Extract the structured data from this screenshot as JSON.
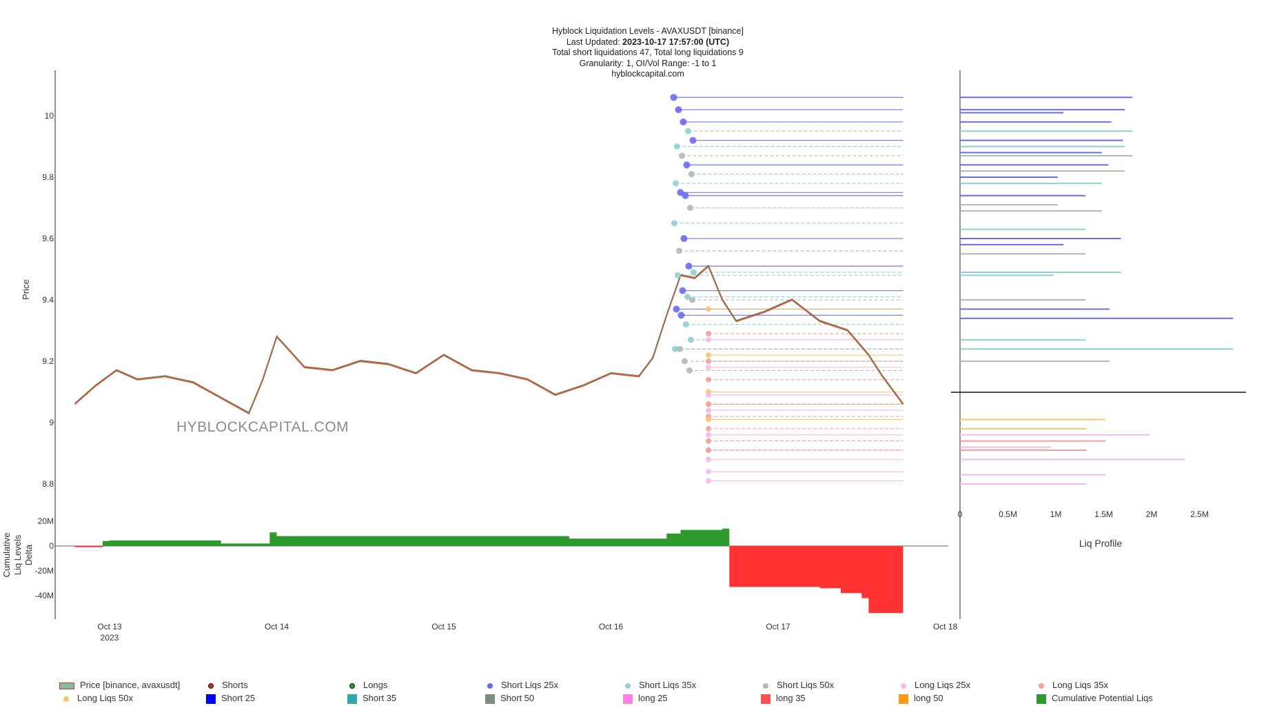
{
  "header": {
    "title": "Hyblock Liquidation Levels - AVAXUSDT [binance]",
    "updated_prefix": "Last Updated: ",
    "updated_value": "2023-10-17 17:57:00 (UTC)",
    "totals": "Total short liquidations 47, Total long liquidations 9",
    "granularity": "Granularity: 1, OI/Vol Range: -1 to 1",
    "site": "hyblockcapital.com"
  },
  "watermark": "HYBLOCKCAPITAL.COM",
  "colors": {
    "short25": "#6a6af0",
    "short35": "#8fd0d0",
    "short50": "#b0bab0",
    "long25": "#f9b8ec",
    "long35": "#f4a09c",
    "long50": "#f6c56e",
    "cumulative_pos": "#2e9a2e",
    "cumulative_neg": "#ff3333",
    "candle_up": "#3f8f5f",
    "candle_down": "#d8573a"
  },
  "chart_data": [
    {
      "type": "line",
      "title": "Hyblock Liquidation Levels - AVAXUSDT [binance]",
      "ylabel": "Price",
      "ylim": [
        8.73,
        10.15
      ],
      "x_ticks": [
        "Oct 13",
        "Oct 14",
        "Oct 15",
        "Oct 16",
        "Oct 17",
        "Oct 18"
      ],
      "x_tick_sub": "2023",
      "y_ticks": [
        "8.8",
        "9",
        "9.2",
        "9.4",
        "9.6",
        "9.8",
        "10"
      ],
      "price_series": {
        "name": "Price [binance, avaxusdt]",
        "x": [
          "2023-10-12 19:00",
          "2023-10-12 22:00",
          "2023-10-13 01:00",
          "2023-10-13 04:00",
          "2023-10-13 08:00",
          "2023-10-13 12:00",
          "2023-10-13 16:00",
          "2023-10-13 20:00",
          "2023-10-13 22:00",
          "2023-10-14 00:00",
          "2023-10-14 04:00",
          "2023-10-14 08:00",
          "2023-10-14 12:00",
          "2023-10-14 16:00",
          "2023-10-14 20:00",
          "2023-10-15 00:00",
          "2023-10-15 04:00",
          "2023-10-15 08:00",
          "2023-10-15 12:00",
          "2023-10-15 16:00",
          "2023-10-15 20:00",
          "2023-10-16 00:00",
          "2023-10-16 04:00",
          "2023-10-16 06:00",
          "2023-10-16 08:00",
          "2023-10-16 10:00",
          "2023-10-16 12:00",
          "2023-10-16 14:00",
          "2023-10-16 16:00",
          "2023-10-16 18:00",
          "2023-10-16 22:00",
          "2023-10-17 02:00",
          "2023-10-17 06:00",
          "2023-10-17 10:00",
          "2023-10-17 13:00",
          "2023-10-17 15:00",
          "2023-10-17 17:57"
        ],
        "y": [
          9.06,
          9.12,
          9.17,
          9.14,
          9.15,
          9.13,
          9.08,
          9.03,
          9.14,
          9.28,
          9.18,
          9.17,
          9.2,
          9.19,
          9.16,
          9.22,
          9.17,
          9.16,
          9.14,
          9.09,
          9.12,
          9.16,
          9.15,
          9.21,
          9.35,
          9.48,
          9.47,
          9.51,
          9.4,
          9.33,
          9.36,
          9.4,
          9.33,
          9.3,
          9.22,
          9.15,
          9.06
        ]
      },
      "short_liq_levels": [
        {
          "leverage": "25x",
          "price": 10.06
        },
        {
          "leverage": "25x",
          "price": 10.02
        },
        {
          "leverage": "25x",
          "price": 9.98
        },
        {
          "leverage": "35x",
          "price": 9.95
        },
        {
          "leverage": "25x",
          "price": 9.92
        },
        {
          "leverage": "35x",
          "price": 9.9
        },
        {
          "leverage": "50x",
          "price": 9.87
        },
        {
          "leverage": "25x",
          "price": 9.84
        },
        {
          "leverage": "50x",
          "price": 9.81
        },
        {
          "leverage": "35x",
          "price": 9.78
        },
        {
          "leverage": "25x",
          "price": 9.75
        },
        {
          "leverage": "25x",
          "price": 9.74
        },
        {
          "leverage": "50x",
          "price": 9.7
        },
        {
          "leverage": "35x",
          "price": 9.65
        },
        {
          "leverage": "50x",
          "price": 9.56
        },
        {
          "leverage": "25x",
          "price": 9.6
        },
        {
          "leverage": "25x",
          "price": 9.51
        },
        {
          "leverage": "35x",
          "price": 9.49
        },
        {
          "leverage": "35x",
          "price": 9.48
        },
        {
          "leverage": "25x",
          "price": 9.43
        },
        {
          "leverage": "35x",
          "price": 9.41
        },
        {
          "leverage": "50x",
          "price": 9.4
        },
        {
          "leverage": "25x",
          "price": 9.37
        },
        {
          "leverage": "25x",
          "price": 9.35
        },
        {
          "leverage": "35x",
          "price": 9.32
        },
        {
          "leverage": "35x",
          "price": 9.27
        },
        {
          "leverage": "35x",
          "price": 9.24
        },
        {
          "leverage": "50x",
          "price": 9.24
        },
        {
          "leverage": "50x",
          "price": 9.2
        },
        {
          "leverage": "50x",
          "price": 9.17
        }
      ],
      "long_liq_levels": [
        {
          "leverage": "50x",
          "price": 9.37
        },
        {
          "leverage": "35x",
          "price": 9.29
        },
        {
          "leverage": "25x",
          "price": 9.27
        },
        {
          "leverage": "25x",
          "price": 9.18
        },
        {
          "leverage": "50x",
          "price": 9.22
        },
        {
          "leverage": "35x",
          "price": 9.2
        },
        {
          "leverage": "35x",
          "price": 9.14
        },
        {
          "leverage": "50x",
          "price": 9.1
        },
        {
          "leverage": "25x",
          "price": 9.09
        },
        {
          "leverage": "50x",
          "price": 9.06
        },
        {
          "leverage": "35x",
          "price": 9.06
        },
        {
          "leverage": "25x",
          "price": 9.04
        },
        {
          "leverage": "35x",
          "price": 9.02
        },
        {
          "leverage": "50x",
          "price": 9.01
        },
        {
          "leverage": "35x",
          "price": 8.98
        },
        {
          "leverage": "25x",
          "price": 8.96
        },
        {
          "leverage": "35x",
          "price": 8.94
        },
        {
          "leverage": "25x",
          "price": 8.91
        },
        {
          "leverage": "35x",
          "price": 8.91
        },
        {
          "leverage": "25x",
          "price": 8.88
        },
        {
          "leverage": "25x",
          "price": 8.84
        },
        {
          "leverage": "25x",
          "price": 8.81
        }
      ]
    },
    {
      "type": "bar",
      "title": "Liq Profile",
      "xlabel": "Liq Profile",
      "x_ticks": [
        "0",
        "0.5M",
        "1M",
        "1.5M",
        "2M",
        "2.5M"
      ],
      "xlim": [
        0,
        3000000
      ],
      "current_price": 9.1,
      "bars": [
        {
          "price": 10.06,
          "value": 1800000,
          "kind": "short25"
        },
        {
          "price": 10.02,
          "value": 1720000,
          "kind": "short25"
        },
        {
          "price": 10.01,
          "value": 1080000,
          "kind": "short25"
        },
        {
          "price": 9.98,
          "value": 1580000,
          "kind": "short25"
        },
        {
          "price": 9.95,
          "value": 1800000,
          "kind": "short35"
        },
        {
          "price": 9.92,
          "value": 1700000,
          "kind": "short25"
        },
        {
          "price": 9.9,
          "value": 1720000,
          "kind": "short35"
        },
        {
          "price": 9.88,
          "value": 1480000,
          "kind": "short25"
        },
        {
          "price": 9.87,
          "value": 1800000,
          "kind": "short50"
        },
        {
          "price": 9.84,
          "value": 1550000,
          "kind": "short25"
        },
        {
          "price": 9.82,
          "value": 1720000,
          "kind": "short50"
        },
        {
          "price": 9.8,
          "value": 1020000,
          "kind": "short25"
        },
        {
          "price": 9.78,
          "value": 1480000,
          "kind": "short35"
        },
        {
          "price": 9.74,
          "value": 1310000,
          "kind": "short25"
        },
        {
          "price": 9.71,
          "value": 1020000,
          "kind": "short50"
        },
        {
          "price": 9.69,
          "value": 1480000,
          "kind": "short50"
        },
        {
          "price": 9.63,
          "value": 1310000,
          "kind": "short35"
        },
        {
          "price": 9.6,
          "value": 1680000,
          "kind": "short25"
        },
        {
          "price": 9.58,
          "value": 1080000,
          "kind": "short25"
        },
        {
          "price": 9.55,
          "value": 1310000,
          "kind": "short50"
        },
        {
          "price": 9.49,
          "value": 1680000,
          "kind": "short35"
        },
        {
          "price": 9.48,
          "value": 980000,
          "kind": "short35"
        },
        {
          "price": 9.4,
          "value": 1310000,
          "kind": "short50"
        },
        {
          "price": 9.37,
          "value": 1560000,
          "kind": "short25"
        },
        {
          "price": 9.34,
          "value": 2850000,
          "kind": "short25"
        },
        {
          "price": 9.27,
          "value": 1310000,
          "kind": "short35"
        },
        {
          "price": 9.24,
          "value": 2850000,
          "kind": "short35"
        },
        {
          "price": 9.2,
          "value": 1560000,
          "kind": "short50"
        },
        {
          "price": 9.01,
          "value": 1520000,
          "kind": "long50"
        },
        {
          "price": 8.98,
          "value": 1320000,
          "kind": "long50"
        },
        {
          "price": 8.96,
          "value": 1980000,
          "kind": "long25"
        },
        {
          "price": 8.94,
          "value": 1520000,
          "kind": "long35"
        },
        {
          "price": 8.92,
          "value": 950000,
          "kind": "long25"
        },
        {
          "price": 8.91,
          "value": 1320000,
          "kind": "long35"
        },
        {
          "price": 8.88,
          "value": 2350000,
          "kind": "long25"
        },
        {
          "price": 8.83,
          "value": 1520000,
          "kind": "long25"
        },
        {
          "price": 8.8,
          "value": 1320000,
          "kind": "long25"
        }
      ]
    },
    {
      "type": "area",
      "title": "Cumulative Liq Levels Delta",
      "ylabel": "Cumulative Liq Levels Delta",
      "y_ticks": [
        "20M",
        "0",
        "-20M",
        "-40M"
      ],
      "ylim": [
        -60000000,
        30000000
      ],
      "series": [
        {
          "name": "Cumulative Potential Liqs",
          "x": [
            "2023-10-12 19:00",
            "2023-10-12 23:00",
            "2023-10-13 00:00",
            "2023-10-13 16:00",
            "2023-10-13 23:00",
            "2023-10-14 00:00",
            "2023-10-15 06:00",
            "2023-10-15 18:00",
            "2023-10-16 08:00",
            "2023-10-16 10:00",
            "2023-10-16 16:00",
            "2023-10-16 17:00",
            "2023-10-17 06:00",
            "2023-10-17 09:00",
            "2023-10-17 12:00",
            "2023-10-17 13:00",
            "2023-10-17 17:57"
          ],
          "y": [
            -1000000,
            4000000,
            4500000,
            2000000,
            11000000,
            8000000,
            8000000,
            6000000,
            10000000,
            13000000,
            14000000,
            -33000000,
            -34000000,
            -38000000,
            -42000000,
            -54000000,
            -54000000
          ]
        }
      ]
    }
  ],
  "legend": {
    "items": [
      {
        "label": "Price [binance, avaxusdt]",
        "swatch": "price"
      },
      {
        "label": "Shorts",
        "swatch": "dot",
        "color": "#d02a2a"
      },
      {
        "label": "Longs",
        "swatch": "dot",
        "color": "#2e9a2e"
      },
      {
        "label": "Short Liqs 25x",
        "swatch": "dot",
        "color": "#6a6af0"
      },
      {
        "label": "Short Liqs 35x",
        "swatch": "dot",
        "color": "#8fd0d0"
      },
      {
        "label": "Short Liqs 50x",
        "swatch": "dot",
        "color": "#b0bab0"
      },
      {
        "label": "Long Liqs 25x",
        "swatch": "dot",
        "color": "#f9b8ec"
      },
      {
        "label": "Long Liqs 35x",
        "swatch": "dot",
        "color": "#f4a09c"
      },
      {
        "label": "Long Liqs 50x",
        "swatch": "dot",
        "color": "#f6c56e"
      },
      {
        "label": "Short 25",
        "swatch": "square",
        "color": "#0000ff"
      },
      {
        "label": "Short 35",
        "swatch": "square",
        "color": "#2ea8a8"
      },
      {
        "label": "Short 50",
        "swatch": "square",
        "color": "#7f8f7f"
      },
      {
        "label": "long 25",
        "swatch": "square",
        "color": "#ff80e0"
      },
      {
        "label": "long 35",
        "swatch": "square",
        "color": "#ff5050"
      },
      {
        "label": "long 50",
        "swatch": "square",
        "color": "#ff9a10"
      },
      {
        "label": "Cumulative Potential Liqs",
        "swatch": "square",
        "color": "#2e9a2e"
      }
    ]
  }
}
